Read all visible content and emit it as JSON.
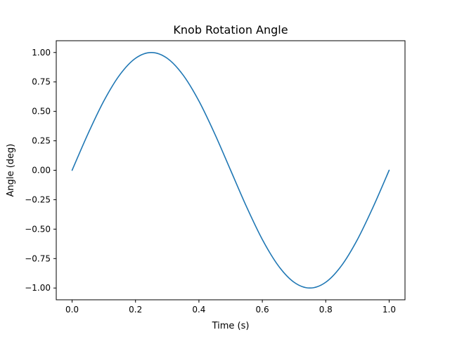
{
  "chart_data": {
    "type": "line",
    "title": "Knob Rotation Angle",
    "xlabel": "Time (s)",
    "ylabel": "Angle (deg)",
    "xlim": [
      -0.05,
      1.05
    ],
    "ylim": [
      -1.1,
      1.1
    ],
    "xticks": [
      0.0,
      0.2,
      0.4,
      0.6,
      0.8,
      1.0
    ],
    "xtick_labels": [
      "0.0",
      "0.2",
      "0.4",
      "0.6",
      "0.8",
      "1.0"
    ],
    "yticks": [
      1.0,
      0.75,
      0.5,
      0.25,
      0.0,
      -0.25,
      -0.5,
      -0.75,
      -1.0
    ],
    "ytick_labels": [
      "1.00",
      "0.75",
      "0.50",
      "0.25",
      "0.00",
      "−0.25",
      "−0.50",
      "−0.75",
      "−1.00"
    ],
    "grid": false,
    "series": [
      {
        "color": "#1f77b4",
        "x": [
          0.0,
          0.05,
          0.1,
          0.15,
          0.2,
          0.25,
          0.3,
          0.35,
          0.4,
          0.45,
          0.5,
          0.55,
          0.6,
          0.65,
          0.7,
          0.75,
          0.8,
          0.85,
          0.9,
          0.95,
          1.0
        ],
        "y": [
          0.0,
          0.309,
          0.588,
          0.809,
          0.951,
          1.0,
          0.951,
          0.809,
          0.588,
          0.309,
          0.0,
          -0.309,
          -0.588,
          -0.809,
          -0.951,
          -1.0,
          -0.951,
          -0.809,
          -0.588,
          -0.309,
          0.0
        ]
      }
    ]
  }
}
